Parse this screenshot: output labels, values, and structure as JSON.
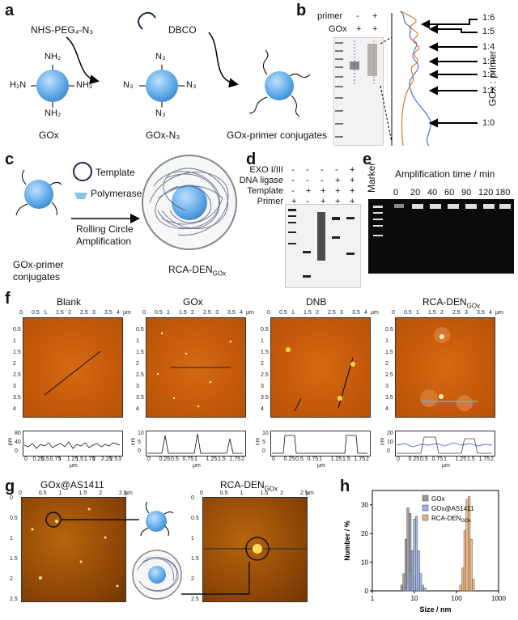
{
  "panels": {
    "a": {
      "letter": "a",
      "reagent1": "NHS-PEG₄-N₃",
      "reagent2": "DBCO",
      "nh2": "NH₂",
      "h2n": "H₂N",
      "n3": "N₃",
      "label1": "GOx",
      "label2": "GOx-N₃",
      "label3": "GOx-primer conjugates"
    },
    "b": {
      "letter": "b",
      "primer_label": "primer",
      "gox_label": "GOx",
      "primer_signs": [
        "-",
        "+"
      ],
      "gox_signs": [
        "+",
        "+"
      ],
      "ratios": [
        "1:6",
        "1:5",
        "1:4",
        "1:3",
        "1:2",
        "1:1",
        "1:0"
      ],
      "axis_title": "GOx : primer"
    },
    "c": {
      "letter": "c",
      "template": "Template",
      "polymerase": "Polymerase",
      "rca1": "Rolling Circle",
      "rca2": "Amplification",
      "left_label1": "GOx-primer",
      "left_label2": "conjugates",
      "right_label": "RCA-DEN",
      "right_sub": "GOx"
    },
    "d": {
      "letter": "d",
      "rows": [
        {
          "label": "EXO I/III",
          "signs": [
            "-",
            "-",
            "-",
            "-",
            "+"
          ]
        },
        {
          "label": "DNA ligase",
          "signs": [
            "-",
            "-",
            "-",
            "+",
            "+"
          ]
        },
        {
          "label": "Template",
          "signs": [
            "-",
            "+",
            "+",
            "+",
            "+"
          ]
        },
        {
          "label": "Primer",
          "signs": [
            "+",
            "-",
            "+",
            "+",
            "+"
          ]
        }
      ]
    },
    "e": {
      "letter": "e",
      "title": "Amplification time / min",
      "marker": "Marker",
      "times": [
        "0",
        "20",
        "40",
        "60",
        "90",
        "120",
        "180"
      ]
    },
    "f": {
      "letter": "f",
      "titles": [
        "Blank",
        "GOx",
        "DNB",
        "RCA-DEN"
      ],
      "title4_sub": "GOx",
      "unit": "μm",
      "xticks": [
        "0",
        "0.5",
        "1",
        "1.5",
        "2",
        "2.5",
        "3",
        "3.5",
        "4"
      ],
      "yticks": [
        "0.5",
        "1",
        "1.5",
        "2",
        "2.5",
        "3",
        "3.5",
        "4"
      ],
      "profile_units": [
        "pm",
        "nm",
        "nm",
        "nm"
      ],
      "profile_y": [
        [
          "80",
          "40",
          "0"
        ],
        [
          "10",
          "5",
          "0"
        ],
        [
          "10",
          "5",
          "0"
        ],
        [
          "20",
          "10",
          "0"
        ]
      ],
      "profile_xticks": [
        [
          "0",
          "0.25",
          "0.5",
          "0.75",
          "1",
          "1.25",
          "1.5",
          "1.75",
          "2",
          "2.25",
          "2.5",
          "3"
        ],
        [
          "0",
          "0.25",
          "0.5",
          "0.75",
          "1",
          "1.25",
          "1.5",
          "1.75",
          "2"
        ],
        [
          "0",
          "0.25",
          "0.5",
          "0.75",
          "1",
          "1.25",
          "1.5",
          "1.75",
          "2"
        ],
        [
          "0",
          "0.25",
          "0.5",
          "0.75",
          "1",
          "1.25",
          "1.5",
          "1.75",
          "2"
        ]
      ]
    },
    "g": {
      "letter": "g",
      "title1": "GOx@AS1411",
      "title2": "RCA-DEN",
      "title2_sub": "GOx",
      "xticks": [
        "0",
        "0.5",
        "1",
        "1.5",
        "2",
        "2.5"
      ],
      "yticks": [
        "0",
        "0.5",
        "1",
        "1.5",
        "2",
        "2.5"
      ],
      "unit": "μm"
    },
    "h": {
      "letter": "h"
    }
  },
  "chart_data": {
    "type": "bar",
    "title": "",
    "xlabel": "Size / nm",
    "ylabel": "Number / %",
    "xscale": "log",
    "xlim": [
      1,
      1000
    ],
    "ylim": [
      0,
      35
    ],
    "xticks": [
      "1",
      "10",
      "100",
      "1000"
    ],
    "yticks": [
      "0",
      "10",
      "20",
      "30"
    ],
    "legend_position": "top-right",
    "series": [
      {
        "name": "GOx",
        "color": "#9a9a9a",
        "x": [
          5.0,
          5.6,
          6.3,
          7.0,
          7.9,
          8.9,
          10.0,
          11.2
        ],
        "values": [
          2,
          6,
          18,
          29,
          27,
          14,
          5,
          1
        ]
      },
      {
        "name": "GOx@AS1411",
        "color": "#9fb2e6",
        "x": [
          6.3,
          7.0,
          7.9,
          8.9,
          10.0,
          11.2,
          12.6,
          14.1,
          15.8,
          17.8
        ],
        "values": [
          1,
          3,
          7,
          14,
          25,
          26,
          14,
          6,
          2,
          1
        ]
      },
      {
        "name": "RCA-DEN",
        "name_sub": "GOx",
        "color": "#f0b27a",
        "x": [
          126,
          141,
          158,
          178,
          200,
          224,
          251
        ],
        "values": [
          2,
          8,
          21,
          32,
          33,
          18,
          4
        ]
      }
    ]
  }
}
